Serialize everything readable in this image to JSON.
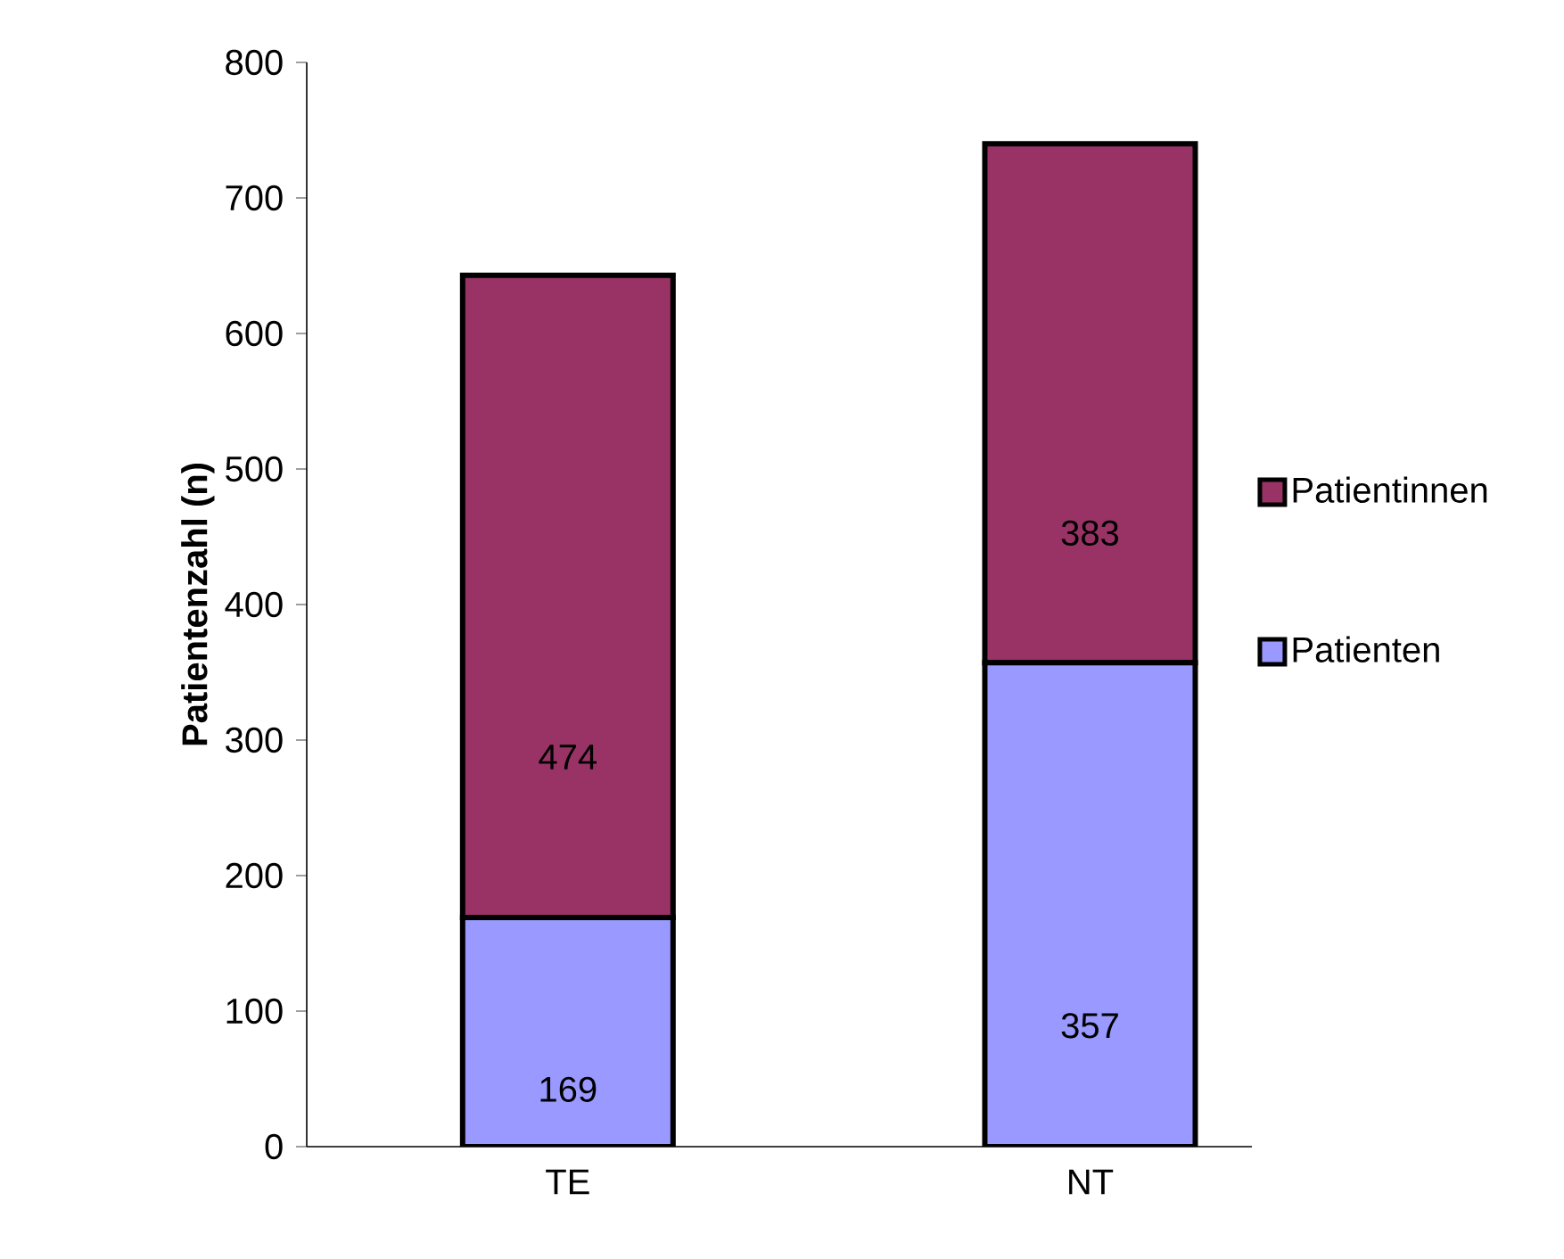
{
  "chart_data": {
    "type": "bar",
    "stacked": true,
    "ylabel": "Patientenzahl (n)",
    "categories": [
      "TE",
      "NT"
    ],
    "series": [
      {
        "name": "Patienten",
        "color": "#9999ff",
        "values": [
          169,
          357
        ]
      },
      {
        "name": "Patientinnen",
        "color": "#993366",
        "values": [
          474,
          383
        ]
      }
    ],
    "ylim": [
      0,
      800
    ],
    "yticks": [
      0,
      100,
      200,
      300,
      400,
      500,
      600,
      700,
      800
    ],
    "data_labels": true,
    "legend": "right"
  }
}
